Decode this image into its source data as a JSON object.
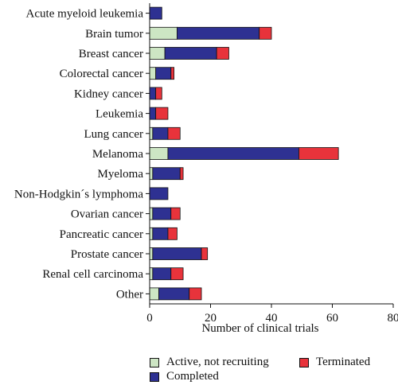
{
  "chart_data": {
    "type": "bar",
    "orientation": "horizontal",
    "stacked": true,
    "title": "",
    "xlabel": "Number of clinical trials",
    "ylabel": "",
    "xlim": [
      0,
      80
    ],
    "xticks": [
      0,
      20,
      40,
      60,
      80
    ],
    "grid": false,
    "legend_position": "bottom",
    "categories": [
      "Acute myeloid leukemia",
      "Brain tumor",
      "Breast cancer",
      "Colorectal cancer",
      "Kidney cancer",
      "Leukemia",
      "Lung cancer",
      "Melanoma",
      "Myeloma",
      "Non-Hodgkin´s lymphoma",
      "Ovarian cancer",
      "Pancreatic cancer",
      "Prostate cancer",
      "Renal cell carcinoma",
      "Other"
    ],
    "series": [
      {
        "name": "Active, not recruiting",
        "color": "#cde6c4",
        "values": [
          0,
          9,
          5,
          2,
          0,
          0,
          1,
          6,
          1,
          0,
          1,
          1,
          1,
          1,
          3
        ]
      },
      {
        "name": "Completed",
        "color": "#2e3192",
        "values": [
          4,
          27,
          17,
          5,
          2,
          2,
          5,
          43,
          9,
          6,
          6,
          5,
          16,
          6,
          10
        ]
      },
      {
        "name": "Terminated",
        "color": "#e8333b",
        "values": [
          0,
          4,
          4,
          1,
          2,
          4,
          4,
          13,
          1,
          0,
          3,
          3,
          2,
          4,
          4
        ]
      }
    ]
  }
}
